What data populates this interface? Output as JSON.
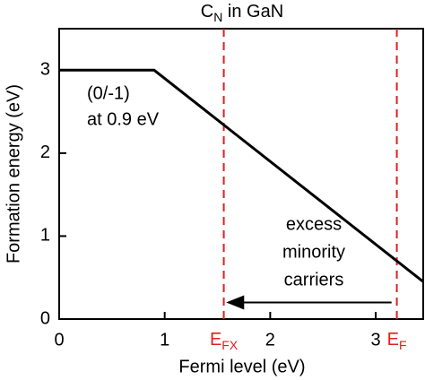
{
  "chart_data": {
    "type": "line",
    "title": {
      "main": "C",
      "sub": "N",
      "rest": " in GaN"
    },
    "x_label": "Fermi level (eV)",
    "y_label": "Formation energy (eV)",
    "x": [
      0,
      0.9,
      3.45
    ],
    "series": [
      {
        "name": "C_N",
        "color": "#000000",
        "values": [
          3,
          3,
          0.45
        ]
      }
    ],
    "xlim": [
      0,
      3.45
    ],
    "ylim": [
      0,
      3.5
    ],
    "xticks": [
      0,
      1,
      2,
      3
    ],
    "yticks": [
      0,
      1,
      2,
      3
    ],
    "vlines": [
      {
        "x": 1.56,
        "label": "E",
        "sub": "FX",
        "color": "#e02020"
      },
      {
        "x": 3.2,
        "label": "E",
        "sub": "F",
        "color": "#e02020"
      }
    ],
    "arrow": {
      "from": [
        3.15,
        0.2
      ],
      "to": [
        1.6,
        0.2
      ]
    },
    "annotations": [
      {
        "lines": [
          "(0/-1)",
          "at 0.9 eV"
        ]
      },
      {
        "lines": [
          "excess",
          "minority",
          "carriers"
        ]
      }
    ]
  }
}
